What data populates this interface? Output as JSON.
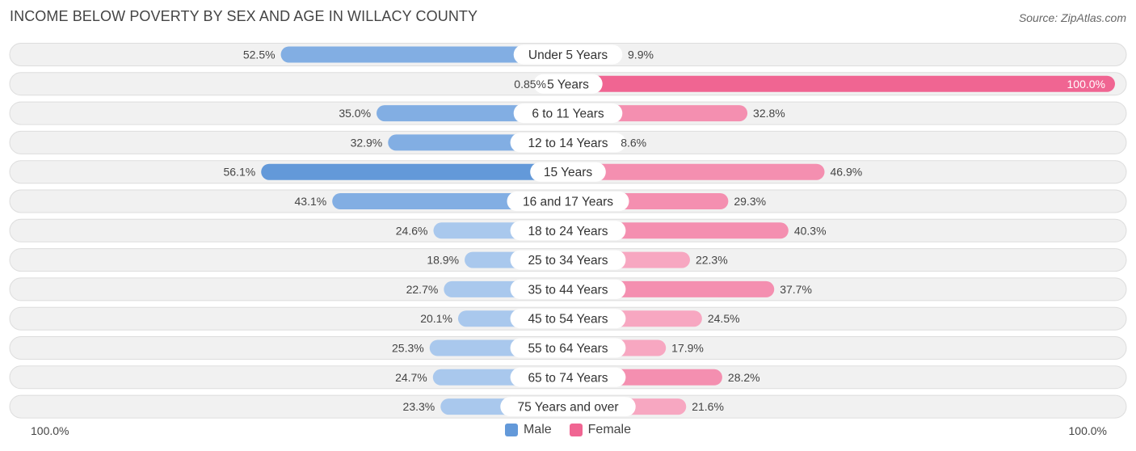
{
  "chart_data": {
    "type": "bar",
    "orientation": "horizontal-diverging",
    "title": "INCOME BELOW POVERTY BY SEX AND AGE IN WILLACY COUNTY",
    "source": "Source: ZipAtlas.com",
    "categories": [
      "Under 5 Years",
      "5 Years",
      "6 to 11 Years",
      "12 to 14 Years",
      "15 Years",
      "16 and 17 Years",
      "18 to 24 Years",
      "25 to 34 Years",
      "35 to 44 Years",
      "45 to 54 Years",
      "55 to 64 Years",
      "65 to 74 Years",
      "75 Years and over"
    ],
    "series": [
      {
        "name": "Male",
        "values": [
          52.5,
          0.85,
          35.0,
          32.9,
          56.1,
          43.1,
          24.6,
          18.9,
          22.7,
          20.1,
          25.3,
          24.7,
          23.3
        ],
        "labels": [
          "52.5%",
          "0.85%",
          "35.0%",
          "32.9%",
          "56.1%",
          "43.1%",
          "24.6%",
          "18.9%",
          "22.7%",
          "20.1%",
          "25.3%",
          "24.7%",
          "23.3%"
        ]
      },
      {
        "name": "Female",
        "values": [
          9.9,
          100.0,
          32.8,
          8.6,
          46.9,
          29.3,
          40.3,
          22.3,
          37.7,
          24.5,
          17.9,
          28.2,
          21.6
        ],
        "labels": [
          "9.9%",
          "100.0%",
          "32.8%",
          "8.6%",
          "46.9%",
          "29.3%",
          "40.3%",
          "22.3%",
          "37.7%",
          "24.5%",
          "17.9%",
          "28.2%",
          "21.6%"
        ]
      }
    ],
    "xlim": [
      -100,
      100
    ],
    "axis_left_label": "100.0%",
    "axis_right_label": "100.0%",
    "legend_position": "bottom-center"
  },
  "colors": {
    "male_dark": "#6399d9",
    "male_light": "#a9c8ed",
    "female_dark": "#f06592",
    "female_light": "#f7a7c1",
    "track": "#f1f1f1",
    "track_border": "#dddddd"
  }
}
